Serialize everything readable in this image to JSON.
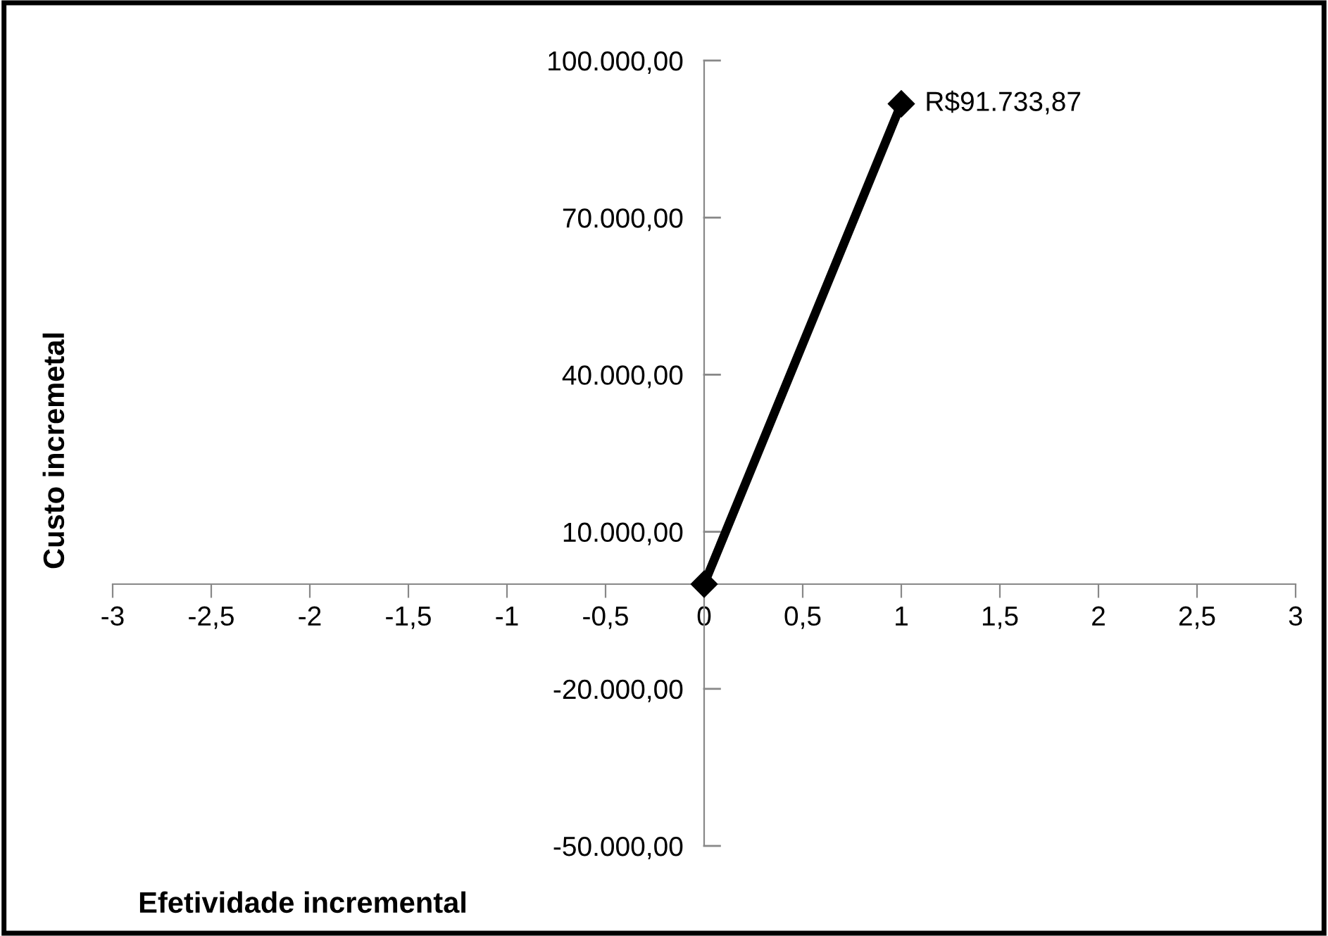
{
  "chart_data": {
    "type": "line",
    "xlabel": "Efetividade incremental",
    "ylabel": "Custo incremetal",
    "x": [
      0,
      1
    ],
    "series": [
      {
        "color": "#000000",
        "values": [
          0,
          91733.87
        ]
      }
    ],
    "marker": "diamond",
    "line_style": "solid",
    "grid": false,
    "legend": false,
    "annotations": [
      {
        "text": "R$91.733,87",
        "x": 1,
        "y": 91733.87
      }
    ],
    "xlim": [
      -3,
      3
    ],
    "xticks": [
      {
        "value": -3,
        "label": "-3"
      },
      {
        "value": -2.5,
        "label": "-2,5"
      },
      {
        "value": -2,
        "label": "-2"
      },
      {
        "value": -1.5,
        "label": "-1,5"
      },
      {
        "value": -1,
        "label": "-1"
      },
      {
        "value": -0.5,
        "label": "-0,5"
      },
      {
        "value": 0,
        "label": "0"
      },
      {
        "value": 0.5,
        "label": "0,5"
      },
      {
        "value": 1,
        "label": "1"
      },
      {
        "value": 1.5,
        "label": "1,5"
      },
      {
        "value": 2,
        "label": "2"
      },
      {
        "value": 2.5,
        "label": "2,5"
      },
      {
        "value": 3,
        "label": "3"
      }
    ],
    "ylim": [
      -50000,
      100000
    ],
    "yticks": [
      {
        "value": -50000,
        "label": "-50.000,00"
      },
      {
        "value": -20000,
        "label": "-20.000,00"
      },
      {
        "value": 10000,
        "label": "10.000,00"
      },
      {
        "value": 40000,
        "label": "40.000,00"
      },
      {
        "value": 70000,
        "label": "70.000,00"
      },
      {
        "value": 100000,
        "label": "100.000,00"
      }
    ]
  }
}
